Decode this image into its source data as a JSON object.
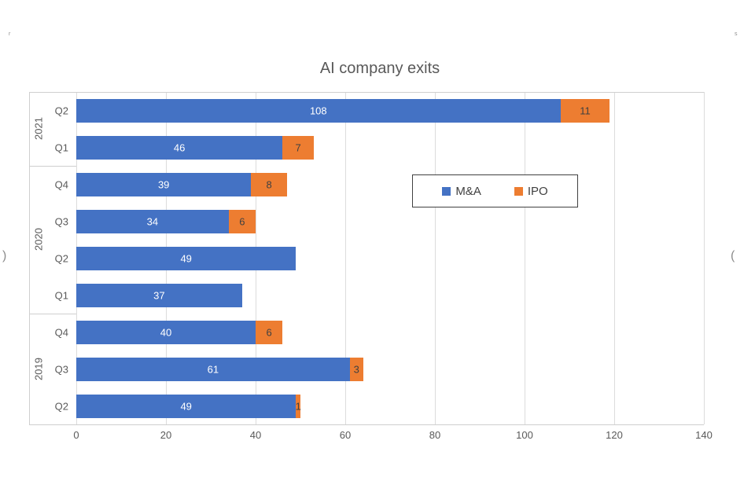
{
  "title": {
    "text": "AI company exits"
  },
  "chart_data": {
    "type": "bar",
    "orientation": "horizontal",
    "stacked": true,
    "title": "AI company exits",
    "grid": true,
    "legend_position": "center-right",
    "xlim": [
      0,
      140
    ],
    "x_ticks": [
      0,
      20,
      40,
      60,
      80,
      100,
      120,
      140
    ],
    "groups": [
      {
        "year": "2021",
        "quarters": [
          "Q2",
          "Q1"
        ]
      },
      {
        "year": "2020",
        "quarters": [
          "Q4",
          "Q3",
          "Q2",
          "Q1"
        ]
      },
      {
        "year": "2019",
        "quarters": [
          "Q4",
          "Q3",
          "Q2"
        ]
      }
    ],
    "categories": [
      "2021 Q2",
      "2021 Q1",
      "2020 Q4",
      "2020 Q3",
      "2020 Q2",
      "2020 Q1",
      "2019 Q4",
      "2019 Q3",
      "2019 Q2"
    ],
    "series": [
      {
        "name": "M&A",
        "color": "#4472C4",
        "label_color": "#ffffff",
        "values": [
          108,
          46,
          39,
          34,
          49,
          37,
          40,
          61,
          49
        ]
      },
      {
        "name": "IPO",
        "color": "#ED7D31",
        "label_color": "#404040",
        "values": [
          11,
          7,
          8,
          6,
          0,
          0,
          6,
          3,
          1
        ]
      }
    ],
    "colors": {
      "gridline": "#dcdcdc",
      "axis_line": "#cfcfcf",
      "tick_text": "#595959",
      "title_text": "#595959",
      "legend_border": "#404040"
    }
  },
  "edge_artifacts": {
    "left_nav_glyph": ")",
    "right_nav_glyph": "(",
    "top_left_mark": "r",
    "top_right_mark": "s"
  }
}
